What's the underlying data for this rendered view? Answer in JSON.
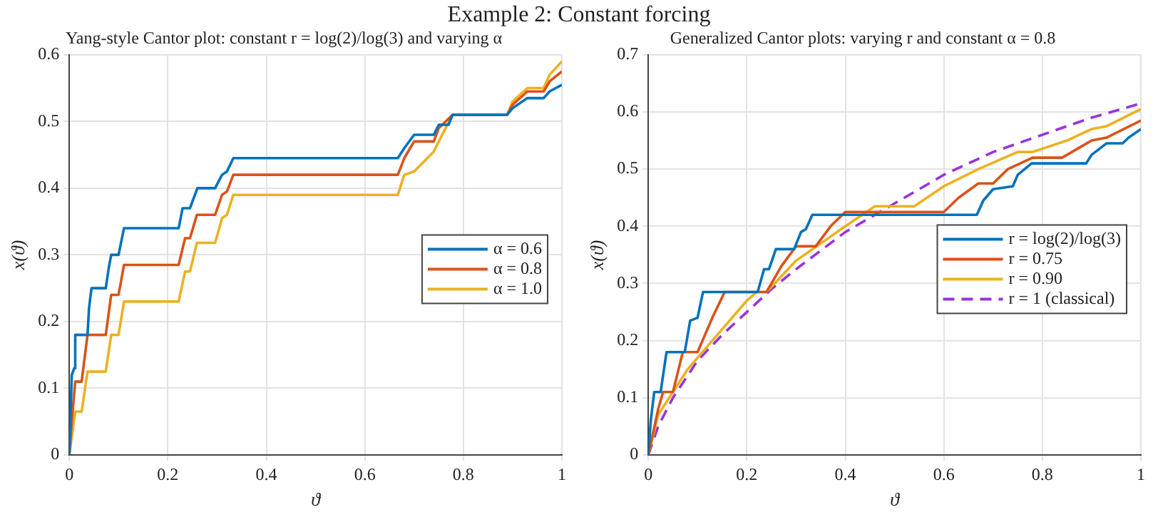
{
  "chart_data": [
    {
      "type": "line",
      "title": "Example 2: Constant forcing",
      "subtitle": "Yang-style Cantor plot: constant r = log(2)/log(3) and varying α",
      "xlabel": "ϑ",
      "ylabel": "x(ϑ)",
      "xlim": [
        0,
        1
      ],
      "ylim": [
        0,
        0.6
      ],
      "xticks": [
        0,
        0.2,
        0.4,
        0.6,
        0.8,
        1
      ],
      "yticks": [
        0,
        0.1,
        0.2,
        0.3,
        0.4,
        0.5,
        0.6
      ],
      "grid": true,
      "legend": "right",
      "marker": "none",
      "series": [
        {
          "name": "α = 0.6",
          "color": "#0072bd",
          "x": [
            0,
            0.005,
            0.01,
            0.012,
            0.037,
            0.04,
            0.045,
            0.074,
            0.08,
            0.085,
            0.1,
            0.111,
            0.222,
            0.23,
            0.245,
            0.26,
            0.296,
            0.31,
            0.32,
            0.333,
            0.667,
            0.68,
            0.7,
            0.74,
            0.75,
            0.77,
            0.778,
            0.889,
            0.9,
            0.93,
            0.963,
            0.975,
            1
          ],
          "values": [
            0,
            0.12,
            0.13,
            0.18,
            0.18,
            0.22,
            0.25,
            0.25,
            0.28,
            0.3,
            0.3,
            0.34,
            0.34,
            0.37,
            0.37,
            0.4,
            0.4,
            0.42,
            0.425,
            0.445,
            0.445,
            0.46,
            0.48,
            0.48,
            0.495,
            0.495,
            0.51,
            0.51,
            0.52,
            0.535,
            0.535,
            0.545,
            0.555
          ]
        },
        {
          "name": "α = 0.8",
          "color": "#d95319",
          "x": [
            0,
            0.005,
            0.012,
            0.025,
            0.037,
            0.074,
            0.085,
            0.1,
            0.111,
            0.222,
            0.235,
            0.245,
            0.259,
            0.296,
            0.31,
            0.32,
            0.333,
            0.667,
            0.68,
            0.7,
            0.74,
            0.75,
            0.778,
            0.889,
            0.9,
            0.93,
            0.963,
            0.975,
            1
          ],
          "values": [
            0,
            0.05,
            0.11,
            0.11,
            0.18,
            0.18,
            0.24,
            0.24,
            0.285,
            0.285,
            0.325,
            0.325,
            0.36,
            0.36,
            0.39,
            0.395,
            0.42,
            0.42,
            0.445,
            0.47,
            0.47,
            0.49,
            0.51,
            0.51,
            0.525,
            0.545,
            0.545,
            0.56,
            0.575
          ]
        },
        {
          "name": "α = 1.0",
          "color": "#edb120",
          "x": [
            0,
            0.012,
            0.025,
            0.037,
            0.074,
            0.085,
            0.1,
            0.111,
            0.222,
            0.235,
            0.245,
            0.259,
            0.296,
            0.31,
            0.32,
            0.333,
            0.667,
            0.68,
            0.7,
            0.74,
            0.75,
            0.778,
            0.889,
            0.9,
            0.93,
            0.963,
            0.975,
            1
          ],
          "values": [
            0,
            0.065,
            0.065,
            0.125,
            0.125,
            0.18,
            0.18,
            0.23,
            0.23,
            0.275,
            0.275,
            0.318,
            0.318,
            0.355,
            0.36,
            0.39,
            0.39,
            0.42,
            0.425,
            0.455,
            0.47,
            0.51,
            0.51,
            0.53,
            0.55,
            0.55,
            0.57,
            0.59
          ]
        }
      ]
    },
    {
      "type": "line",
      "subtitle": "Generalized Cantor plots: varying r and constant α = 0.8",
      "xlabel": "ϑ",
      "ylabel": "x(ϑ)",
      "xlim": [
        0,
        1
      ],
      "ylim": [
        0,
        0.7
      ],
      "xticks": [
        0,
        0.2,
        0.4,
        0.6,
        0.8,
        1
      ],
      "yticks": [
        0,
        0.1,
        0.2,
        0.3,
        0.4,
        0.5,
        0.6,
        0.7
      ],
      "grid": true,
      "legend": "right",
      "marker": "none",
      "series": [
        {
          "name": "r = log(2)/log(3)",
          "color": "#0072bd",
          "x": [
            0,
            0.005,
            0.012,
            0.025,
            0.037,
            0.074,
            0.085,
            0.1,
            0.111,
            0.222,
            0.235,
            0.245,
            0.259,
            0.296,
            0.31,
            0.32,
            0.333,
            0.667,
            0.68,
            0.7,
            0.74,
            0.75,
            0.778,
            0.889,
            0.9,
            0.93,
            0.963,
            0.975,
            1
          ],
          "values": [
            0,
            0.06,
            0.11,
            0.11,
            0.18,
            0.18,
            0.235,
            0.24,
            0.285,
            0.285,
            0.325,
            0.325,
            0.36,
            0.36,
            0.39,
            0.395,
            0.42,
            0.42,
            0.445,
            0.465,
            0.47,
            0.49,
            0.51,
            0.51,
            0.525,
            0.545,
            0.545,
            0.555,
            0.57
          ]
        },
        {
          "name": "r = 0.75",
          "color": "#d95319",
          "x": [
            0,
            0.02,
            0.03,
            0.05,
            0.07,
            0.1,
            0.13,
            0.155,
            0.24,
            0.27,
            0.3,
            0.34,
            0.37,
            0.4,
            0.6,
            0.63,
            0.67,
            0.7,
            0.73,
            0.78,
            0.84,
            0.87,
            0.9,
            0.93,
            1
          ],
          "values": [
            0,
            0.08,
            0.11,
            0.11,
            0.18,
            0.18,
            0.24,
            0.285,
            0.285,
            0.33,
            0.365,
            0.365,
            0.4,
            0.425,
            0.425,
            0.45,
            0.475,
            0.475,
            0.5,
            0.52,
            0.52,
            0.535,
            0.55,
            0.555,
            0.585
          ]
        },
        {
          "name": "r = 0.90",
          "color": "#edb120",
          "x": [
            0,
            0.02,
            0.05,
            0.08,
            0.11,
            0.15,
            0.2,
            0.22,
            0.24,
            0.3,
            0.35,
            0.4,
            0.46,
            0.54,
            0.6,
            0.67,
            0.75,
            0.78,
            0.85,
            0.9,
            0.93,
            1
          ],
          "values": [
            0,
            0.07,
            0.11,
            0.15,
            0.18,
            0.22,
            0.27,
            0.285,
            0.285,
            0.34,
            0.37,
            0.4,
            0.435,
            0.435,
            0.47,
            0.5,
            0.53,
            0.53,
            0.55,
            0.57,
            0.575,
            0.605
          ]
        },
        {
          "name": "r = 1 (classical)",
          "color": "#9933dd",
          "line_style": "dashed",
          "x": [
            0,
            0.02,
            0.05,
            0.1,
            0.15,
            0.2,
            0.25,
            0.3,
            0.4,
            0.5,
            0.6,
            0.7,
            0.8,
            0.9,
            1
          ],
          "values": [
            0,
            0.05,
            0.1,
            0.165,
            0.21,
            0.25,
            0.29,
            0.325,
            0.39,
            0.44,
            0.49,
            0.53,
            0.56,
            0.59,
            0.615
          ]
        }
      ]
    }
  ]
}
